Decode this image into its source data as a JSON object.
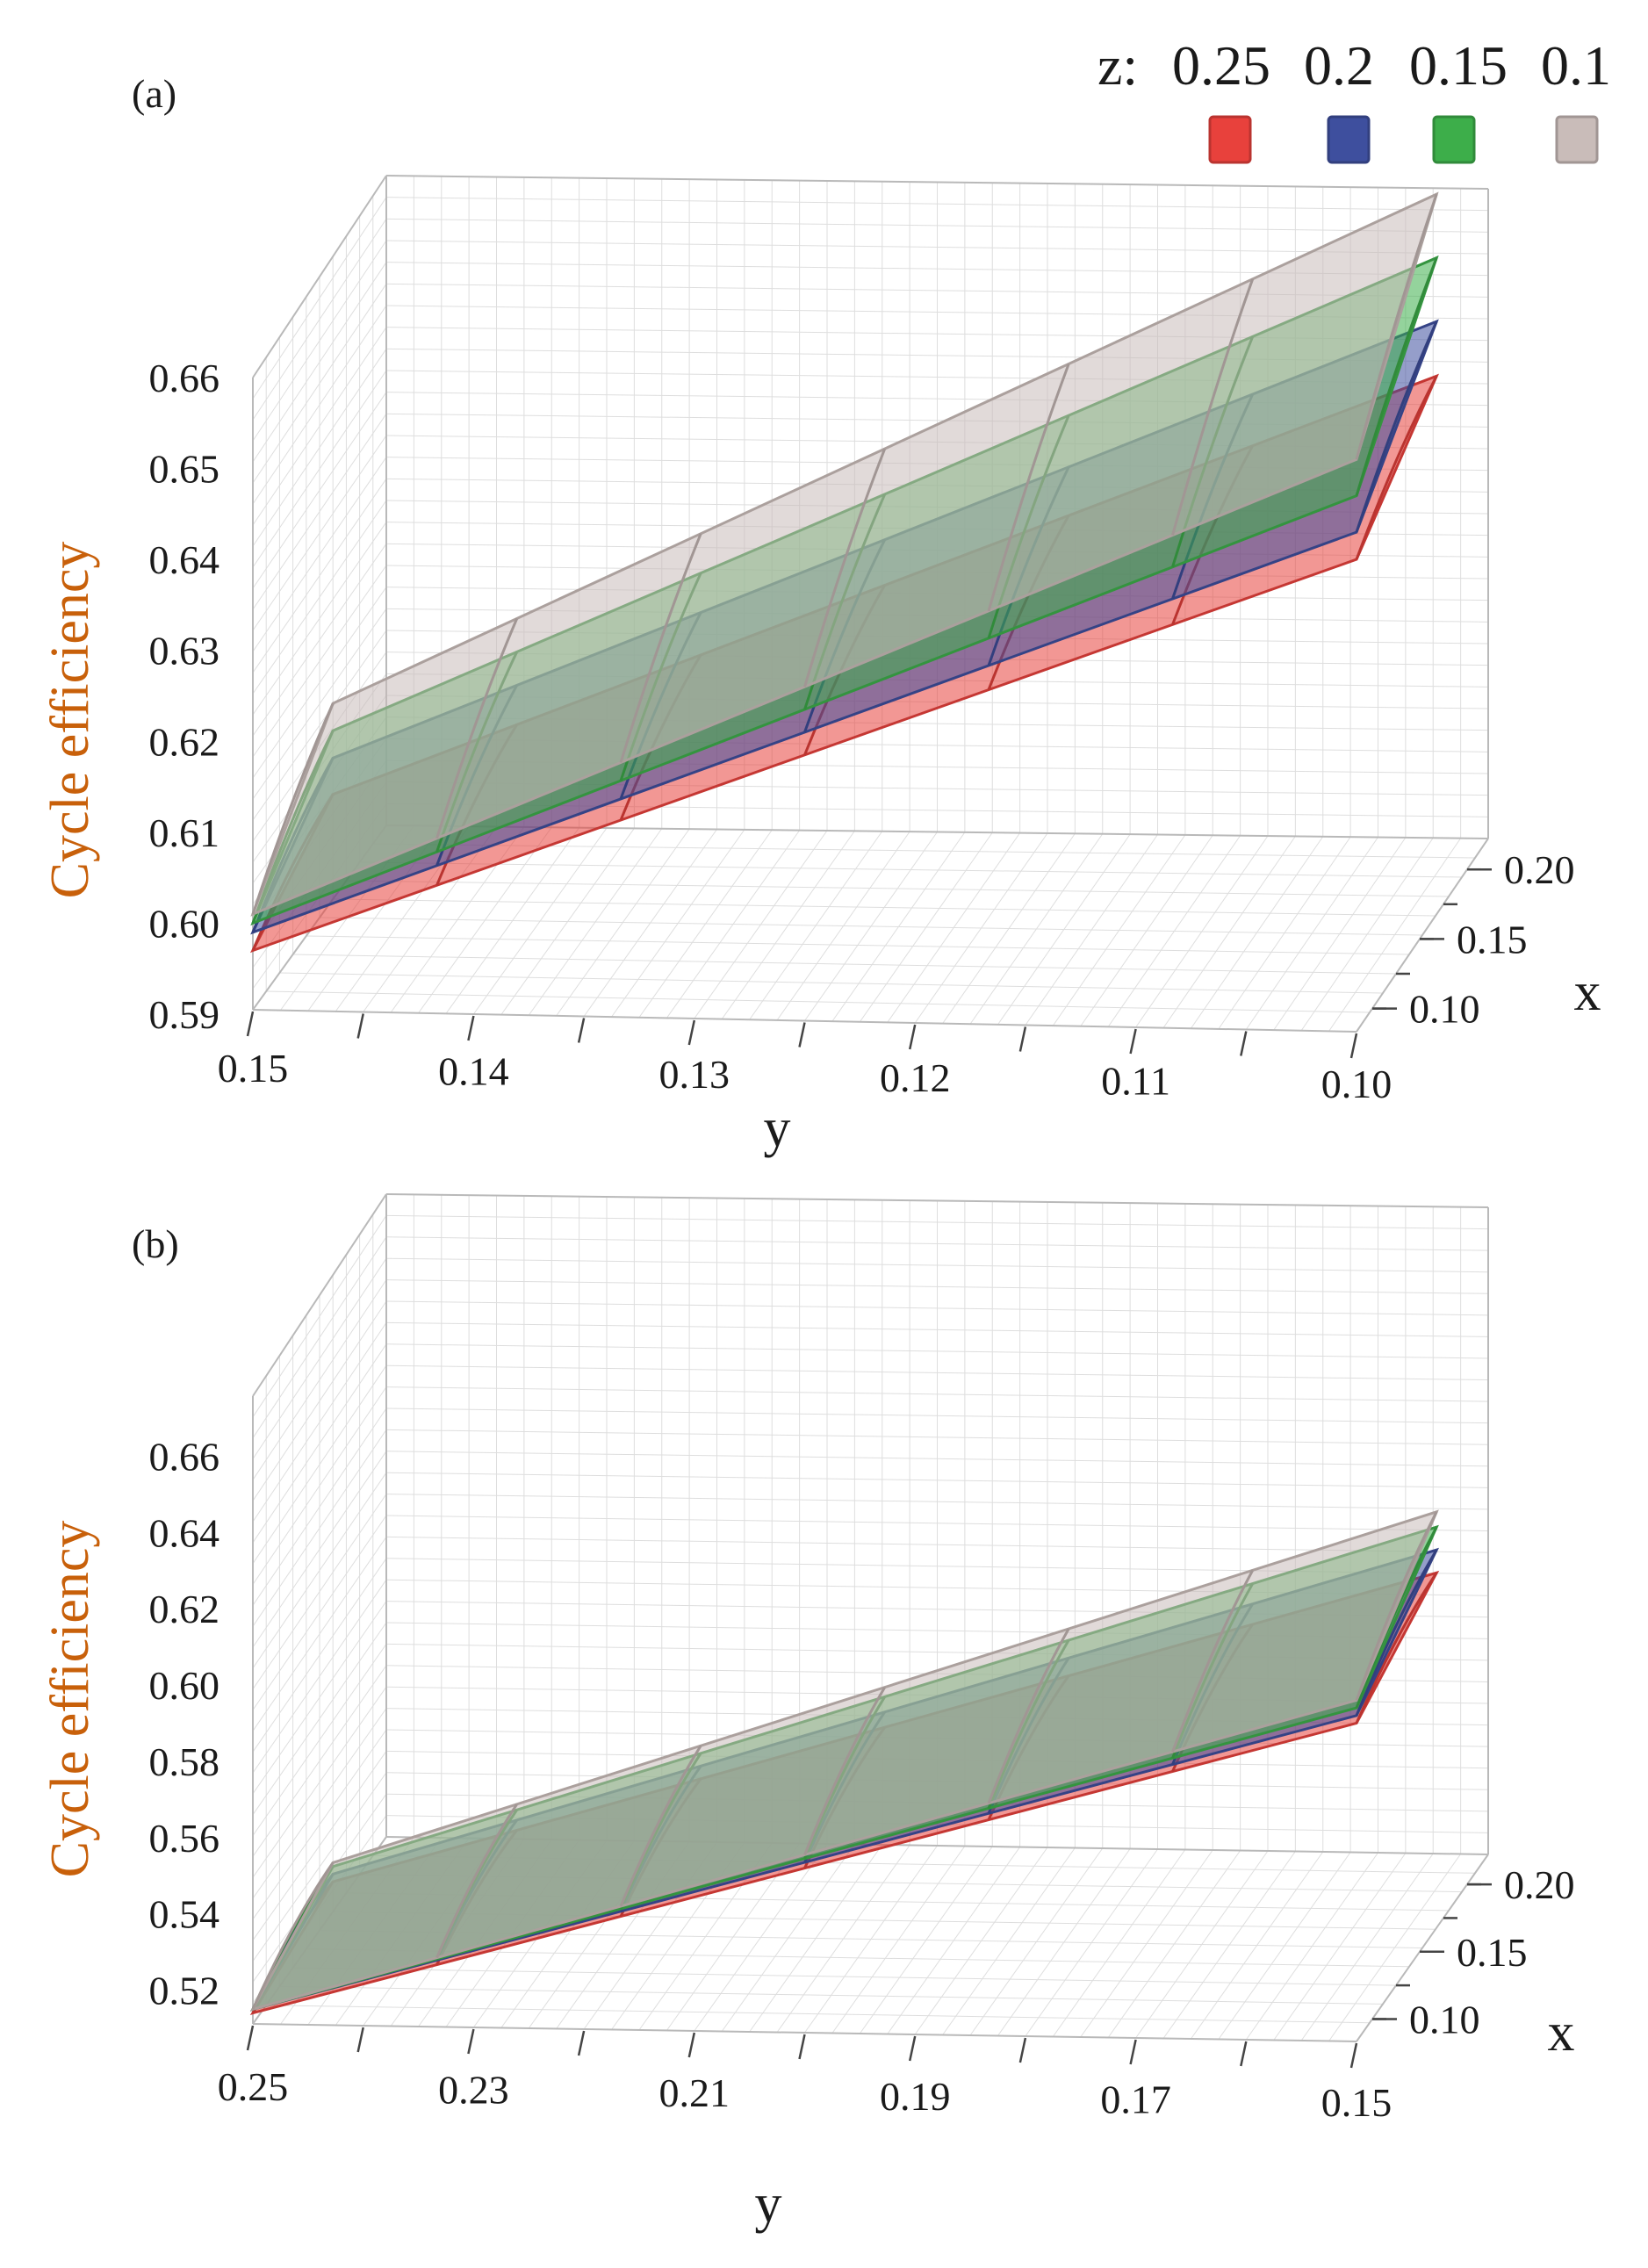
{
  "legend": {
    "title": "z:",
    "entries": [
      {
        "label": "0.25",
        "color": "#e8413c"
      },
      {
        "label": "0.2",
        "color": "#3e4f9e"
      },
      {
        "label": "0.15",
        "color": "#3dae4a"
      },
      {
        "label": "0.1",
        "color": "#c9bcb9"
      }
    ]
  },
  "chart_data": [
    {
      "panel": "(a)",
      "type": "surface",
      "ylabel": "Cycle efficiency",
      "xlabel_front": "y",
      "xlabel_depth": "x",
      "front_axis": {
        "range": [
          0.15,
          0.1
        ],
        "ticks": [
          "0.15",
          "0.14",
          "0.13",
          "0.12",
          "0.11",
          "0.10"
        ]
      },
      "depth_axis": {
        "range": [
          0.1,
          0.2
        ],
        "ticks": [
          "0.20",
          "0.15",
          "0.10"
        ]
      },
      "vertical_axis": {
        "range": [
          0.59,
          0.66
        ],
        "ticks": [
          "0.66",
          "0.65",
          "0.64",
          "0.63",
          "0.62",
          "0.61",
          "0.60",
          "0.59"
        ]
      },
      "series": [
        {
          "name": "z=0.1",
          "color": "#c9bcb9",
          "front": [
            0.601,
            0.651
          ],
          "back": [
            0.612,
            0.668
          ]
        },
        {
          "name": "z=0.15",
          "color": "#3dae4a",
          "front": [
            0.6,
            0.647
          ],
          "back": [
            0.609,
            0.661
          ]
        },
        {
          "name": "z=0.2",
          "color": "#3e4f9e",
          "front": [
            0.599,
            0.643
          ],
          "back": [
            0.606,
            0.654
          ]
        },
        {
          "name": "z=0.25",
          "color": "#e8413c",
          "front": [
            0.597,
            0.64
          ],
          "back": [
            0.602,
            0.648
          ]
        }
      ]
    },
    {
      "panel": "(b)",
      "type": "surface",
      "ylabel": "Cycle efficiency",
      "xlabel_front": "y",
      "xlabel_depth": "x",
      "front_axis": {
        "range": [
          0.25,
          0.15
        ],
        "ticks": [
          "0.25",
          "0.23",
          "0.21",
          "0.19",
          "0.17",
          "0.15"
        ]
      },
      "depth_axis": {
        "range": [
          0.1,
          0.2
        ],
        "ticks": [
          "0.20",
          "0.15",
          "0.10"
        ]
      },
      "vertical_axis": {
        "range": [
          0.51,
          0.67
        ],
        "ticks": [
          "0.66",
          "0.64",
          "0.62",
          "0.60",
          "0.58",
          "0.56",
          "0.54",
          "0.52"
        ]
      },
      "series": [
        {
          "name": "z=0.1",
          "color": "#c9bcb9",
          "front": [
            0.515,
            0.596
          ],
          "back": [
            0.524,
            0.616
          ]
        },
        {
          "name": "z=0.15",
          "color": "#3dae4a",
          "front": [
            0.515,
            0.594
          ],
          "back": [
            0.523,
            0.612
          ]
        },
        {
          "name": "z=0.2",
          "color": "#3e4f9e",
          "front": [
            0.515,
            0.592
          ],
          "back": [
            0.521,
            0.606
          ]
        },
        {
          "name": "z=0.25",
          "color": "#e8413c",
          "front": [
            0.514,
            0.59
          ],
          "back": [
            0.519,
            0.6
          ]
        }
      ]
    }
  ]
}
